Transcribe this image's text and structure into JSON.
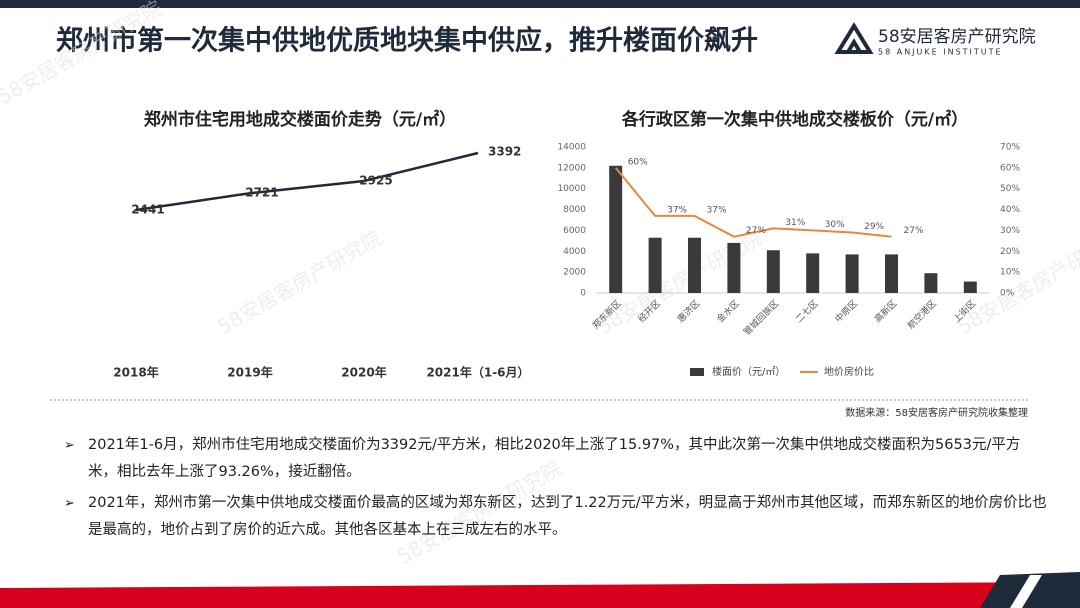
{
  "header": {
    "title": "郑州市第一次集中供地优质地块集中供应，推升楼面价飙升",
    "logo": "58安居客房产研究院",
    "logo_en": "58 ANJUKE INSTITUTE"
  },
  "watermark": "58安居客房产研究院",
  "source": "数据来源：58安居客房产研究院收集整理",
  "bullets": [
    "2021年1-6月，郑州市住宅用地成交楼面价为3392元/平方米，相比2020年上涨了15.97%，其中此次第一次集中供地成交楼面积为5653元/平方米，相比去年上涨了93.26%，接近翻倍。",
    "2021年，郑州市第一次集中供地成交楼面价最高的区域为郑东新区，达到了1.22万元/平方米，明显高于郑州市其他区域，而郑东新区的地价房价比也是最高的，地价占到了房价的近六成。其他各区基本上在三成左右的水平。"
  ],
  "chart_data": [
    {
      "type": "line",
      "title": "郑州市住宅用地成交楼面价走势（元/㎡）",
      "categories": [
        "2018年",
        "2019年",
        "2020年",
        "2021年（1-6月）"
      ],
      "values": [
        2441,
        2721,
        2925,
        3392
      ],
      "color": "#1f2a3a"
    },
    {
      "type": "bar",
      "title": "各行政区第一次集中供地成交楼板价（元/㎡）",
      "categories": [
        "郑东新区",
        "经开区",
        "惠济区",
        "金水区",
        "管城回族区",
        "二七区",
        "中原区",
        "高新区",
        "航空港区",
        "上街区"
      ],
      "series": [
        {
          "name": "楼面价（元/㎡）",
          "color": "#3a3a3a",
          "values": [
            12200,
            5300,
            5300,
            4800,
            4100,
            3800,
            3700,
            3700,
            1900,
            1100
          ]
        },
        {
          "name": "地价房价比",
          "color": "#e8883a",
          "type": "line",
          "axis": "y2",
          "values": [
            60,
            37,
            37,
            27,
            31,
            30,
            29,
            27,
            null,
            null
          ],
          "value_labels": [
            "60%",
            "37%",
            "37%",
            "27%",
            "31%",
            "30%",
            "29%",
            "27%",
            null,
            null
          ]
        }
      ],
      "ylim": [
        0,
        14000
      ],
      "yticks": [
        0,
        2000,
        4000,
        6000,
        8000,
        10000,
        12000,
        14000
      ],
      "y2lim": [
        0,
        70
      ],
      "y2ticks": [
        {
          "value": 0,
          "label": "0%"
        },
        {
          "value": 10,
          "label": "10%"
        },
        {
          "value": 20,
          "label": "20%"
        },
        {
          "value": 30,
          "label": "30%"
        },
        {
          "value": 40,
          "label": "40%"
        },
        {
          "value": 50,
          "label": "50%"
        },
        {
          "value": 60,
          "label": "60%"
        },
        {
          "value": 70,
          "label": "70%"
        }
      ],
      "legend": "bottom"
    }
  ]
}
